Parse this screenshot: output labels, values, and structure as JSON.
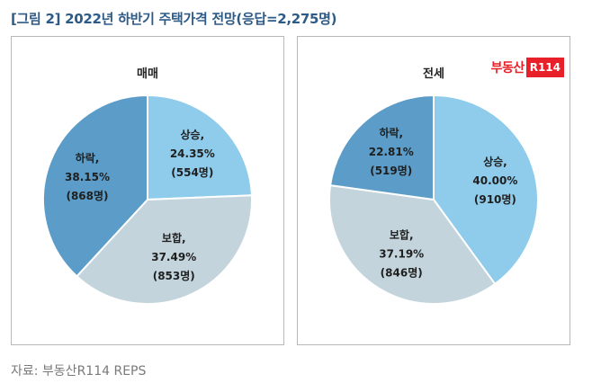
{
  "figure_title": "[그림 2] 2022년 하반기 주택가격 전망(응답=2,275명)",
  "source": "자료: 부동산R114 REPS",
  "brand": {
    "text": "부동산",
    "box": "R114"
  },
  "chart_data": [
    {
      "type": "pie",
      "title": "매매",
      "slices": [
        {
          "label": "상승,",
          "value": 24.35,
          "pct": "24.35%",
          "count": "(554명)",
          "color": "#8fcbea"
        },
        {
          "label": "보합,",
          "value": 37.49,
          "pct": "37.49%",
          "count": "(853명)",
          "color": "#c3d4dc"
        },
        {
          "label": "하락,",
          "value": 38.15,
          "pct": "38.15%",
          "count": "(868명)",
          "color": "#5b9cc8"
        }
      ]
    },
    {
      "type": "pie",
      "title": "전세",
      "slices": [
        {
          "label": "상승,",
          "value": 40.0,
          "pct": "40.00%",
          "count": "(910명)",
          "color": "#8fcbea"
        },
        {
          "label": "보합,",
          "value": 37.19,
          "pct": "37.19%",
          "count": "(846명)",
          "color": "#c3d4dc"
        },
        {
          "label": "하락,",
          "value": 22.81,
          "pct": "22.81%",
          "count": "(519명)",
          "color": "#5b9cc8"
        }
      ]
    }
  ]
}
